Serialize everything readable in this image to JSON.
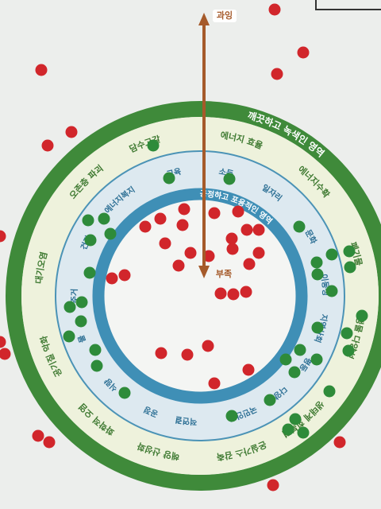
{
  "arrow": {
    "top_label": "과잉",
    "bottom_label": "부족"
  },
  "ecological": {
    "title": "깨끗하고 녹색인 영역",
    "labels": [
      "담수고갈",
      "에너지 효율",
      "에너지수확",
      "폐기물",
      "생물 다양성",
      "생태계 회복력",
      "온실가스 감축",
      "해양 산성화",
      "화학적 오염",
      "공기질 악화",
      "대기오염",
      "오존층 파괴"
    ]
  },
  "social": {
    "title": "공정하고 포용적인 영역",
    "labels": [
      "교육",
      "소득",
      "일자리",
      "문화",
      "이동성",
      "지역사회",
      "평등",
      "다양성",
      "국민안전",
      "사회적연결",
      "공정",
      "식량",
      "물",
      "주거",
      "건강",
      "에너지복지"
    ]
  }
}
